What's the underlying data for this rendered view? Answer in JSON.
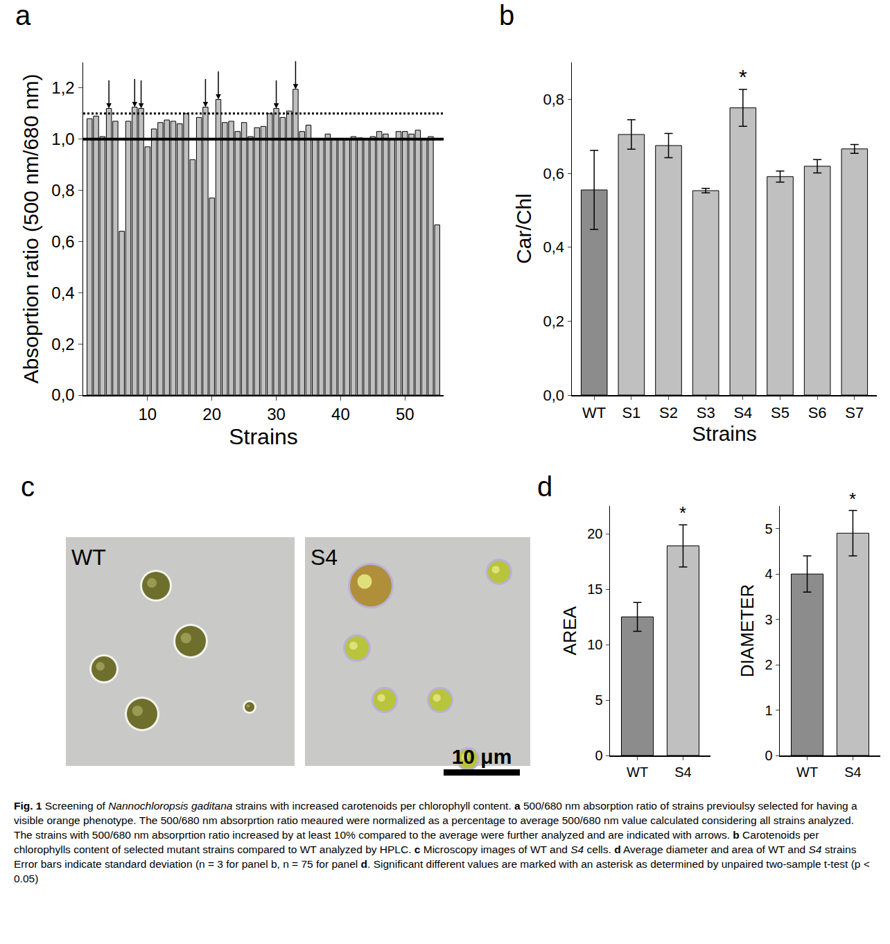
{
  "chart_data": [
    {
      "panel": "a",
      "type": "bar",
      "x": [
        1,
        2,
        3,
        4,
        5,
        6,
        7,
        8,
        9,
        10,
        11,
        12,
        13,
        14,
        15,
        16,
        17,
        18,
        19,
        20,
        21,
        22,
        23,
        24,
        25,
        26,
        27,
        28,
        29,
        30,
        31,
        32,
        33,
        34,
        35,
        36,
        37,
        38,
        39,
        40,
        41,
        42,
        43,
        44,
        45,
        46,
        47,
        48,
        49,
        50,
        51,
        52,
        53,
        54,
        55
      ],
      "values": [
        1.08,
        1.09,
        1.01,
        1.12,
        1.07,
        0.64,
        1.07,
        1.125,
        1.12,
        0.97,
        1.04,
        1.065,
        1.075,
        1.07,
        1.06,
        1.1,
        0.92,
        1.085,
        1.125,
        0.77,
        1.155,
        1.065,
        1.07,
        1.03,
        1.065,
        1.01,
        1.045,
        1.05,
        1.1,
        1.12,
        1.085,
        1.11,
        1.195,
        1.03,
        1.055,
        1.0,
        1.0,
        1.02,
        1.0,
        1.0,
        1.0,
        1.01,
        1.005,
        1.0,
        1.01,
        1.03,
        1.02,
        1.0,
        1.03,
        1.03,
        1.02,
        1.035,
        1.0,
        1.01,
        0.665
      ],
      "color": "#c0c0c0",
      "xlim": [
        0,
        56
      ],
      "xticks": [
        10,
        20,
        30,
        40,
        50
      ],
      "ylim": [
        0,
        1.3
      ],
      "yticks": [
        {
          "value": 0,
          "label": "0,0"
        },
        {
          "value": 0.2,
          "label": "0,2"
        },
        {
          "value": 0.4,
          "label": "0,4"
        },
        {
          "value": 0.6,
          "label": "0,6"
        },
        {
          "value": 0.8,
          "label": "0,8"
        },
        {
          "value": 1.0,
          "label": "1,0"
        },
        {
          "value": 1.2,
          "label": "1,2"
        }
      ],
      "x_label": "Strains",
      "y_label": "Absoprtion ratio (500 nm/680 nm)",
      "reference_lines": [
        {
          "value": 1.0,
          "line_style": "solid"
        },
        {
          "value": 1.1,
          "line_style": "dot"
        }
      ],
      "arrows_at": [
        4,
        8,
        9,
        19,
        21,
        30,
        33
      ],
      "grid": false
    },
    {
      "panel": "b",
      "type": "bar",
      "categories": [
        "WT",
        "S1",
        "S2",
        "S3",
        "S4",
        "S5",
        "S6",
        "S7"
      ],
      "values": [
        0.555,
        0.705,
        0.675,
        0.553,
        0.777,
        0.591,
        0.619,
        0.666
      ],
      "errors": [
        0.107,
        0.04,
        0.033,
        0.006,
        0.05,
        0.015,
        0.018,
        0.012
      ],
      "colors": [
        "#8c8c8c",
        "#c0c0c0",
        "#c0c0c0",
        "#c0c0c0",
        "#c0c0c0",
        "#c0c0c0",
        "#c0c0c0",
        "#c0c0c0"
      ],
      "ylim": [
        0,
        0.9
      ],
      "yticks": [
        {
          "value": 0,
          "label": "0,0"
        },
        {
          "value": 0.2,
          "label": "0,2"
        },
        {
          "value": 0.4,
          "label": "0,4"
        },
        {
          "value": 0.6,
          "label": "0,6"
        },
        {
          "value": 0.8,
          "label": "0,8"
        }
      ],
      "x_label": "Strains",
      "y_label": "Car/Chl",
      "significance": [
        {
          "category": "S4",
          "label": "*"
        }
      ],
      "grid": false
    },
    {
      "panel": "d",
      "type": "bar",
      "categories": [
        "WT",
        "S4"
      ],
      "values": [
        12.5,
        18.9
      ],
      "errors": [
        1.3,
        1.9
      ],
      "colors": [
        "#8c8c8c",
        "#c0c0c0"
      ],
      "ylim": [
        0,
        22.5
      ],
      "yticks": [
        0,
        5,
        10,
        15,
        20
      ],
      "y_label": "AREA",
      "significance": [
        {
          "category": "S4",
          "label": "*"
        }
      ],
      "grid": false
    },
    {
      "type": "bar",
      "categories": [
        "WT",
        "S4"
      ],
      "values": [
        4.0,
        4.9
      ],
      "errors": [
        0.4,
        0.5
      ],
      "colors": [
        "#8c8c8c",
        "#c0c0c0"
      ],
      "ylim": [
        0,
        5.5
      ],
      "yticks": [
        0,
        1,
        2,
        3,
        4,
        5
      ],
      "y_label": "DIAMETER",
      "significance": [
        {
          "category": "S4",
          "label": "*"
        }
      ],
      "grid": false
    }
  ],
  "image_panel": {
    "panel": "c",
    "images": [
      {
        "label": "WT"
      },
      {
        "label": "S4"
      }
    ],
    "scale_bar": "10 μm"
  },
  "caption": [
    {
      "text": "Fig. 1",
      "bold": true
    },
    {
      "text": "  Screening of "
    },
    {
      "text": "Nannochloropsis gaditana",
      "italic": true
    },
    {
      "text": " strains with increased carotenoids per chlorophyll content. "
    },
    {
      "text": "a",
      "bold": true
    },
    {
      "text": " 500/680 nm absorption ratio of strains previoulsy selected for having a visible orange phenotype. The 500/680 nm absorprtion ratio meaured were normalized as a percentage to average 500/680 nm value calculated considering all strains analyzed. The strains with 500/680 nm absorprtion ratio increased by at least 10% compared to the average were further analyzed and are indicated with arrows. "
    },
    {
      "text": "b",
      "bold": true
    },
    {
      "text": " Carotenoids per chlorophylls content of selected mutant strains compared to WT analyzed by HPLC. "
    },
    {
      "text": "c",
      "bold": true
    },
    {
      "text": " Microscopy images of WT and "
    },
    {
      "text": "S4",
      "italic": true
    },
    {
      "text": " cells. "
    },
    {
      "text": "d",
      "bold": true
    },
    {
      "text": " Average diameter and area of WT and "
    },
    {
      "text": "S4",
      "italic": true
    },
    {
      "text": " strains Error bars indicate standard deviation (n = 3 for panel b, n = 75 for panel "
    },
    {
      "text": "d",
      "bold": true
    },
    {
      "text": ". Significant different values are marked with an asterisk as determined by unpaired two-sample t-test (p < 0.05)"
    }
  ]
}
